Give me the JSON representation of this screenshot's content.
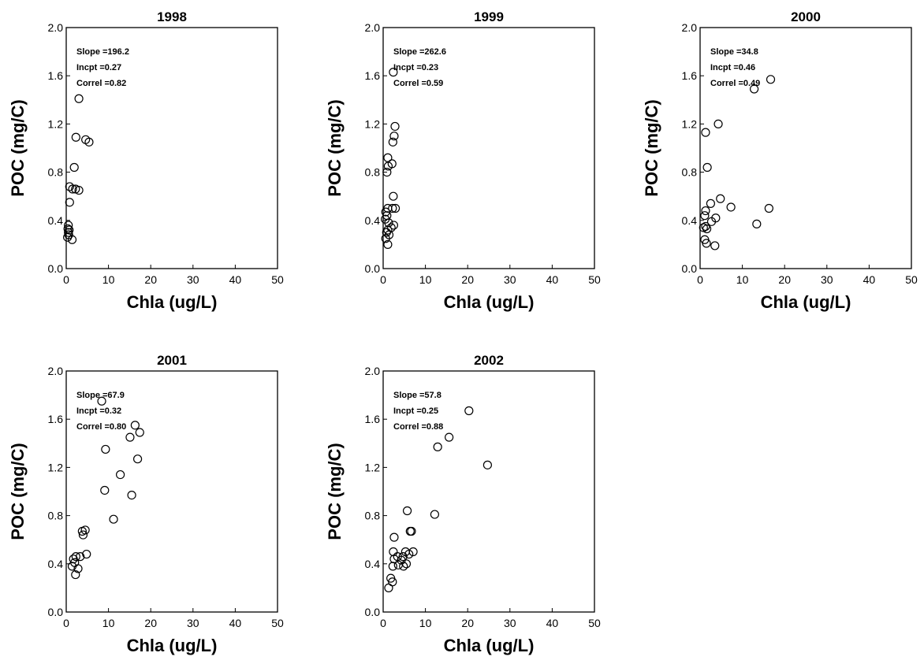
{
  "chart_data": [
    {
      "type": "scatter",
      "title": "1998",
      "xlabel": "Chla (ug/L)",
      "ylabel": "POC (mg/C)",
      "xlim": [
        0,
        50
      ],
      "ylim": [
        0,
        2.0
      ],
      "xticks": [
        "0",
        "10",
        "20",
        "30",
        "40",
        "50"
      ],
      "yticks": [
        "0.0",
        "0.4",
        "0.8",
        "1.2",
        "1.6",
        "2.0"
      ],
      "stats": [
        "Slope =196.2",
        "Incpt =0.27",
        "Correl =0.82"
      ],
      "points": [
        [
          3,
          1.41
        ],
        [
          2.3,
          1.09
        ],
        [
          4.6,
          1.07
        ],
        [
          5.4,
          1.05
        ],
        [
          1.9,
          0.84
        ],
        [
          0.8,
          0.68
        ],
        [
          1.5,
          0.66
        ],
        [
          2.2,
          0.66
        ],
        [
          3,
          0.65
        ],
        [
          0.8,
          0.55
        ],
        [
          0.5,
          0.36
        ],
        [
          0.4,
          0.33
        ],
        [
          0.7,
          0.32
        ],
        [
          0.5,
          0.3
        ],
        [
          0.6,
          0.28
        ],
        [
          0.3,
          0.26
        ],
        [
          1.4,
          0.24
        ]
      ]
    },
    {
      "type": "scatter",
      "title": "1999",
      "xlabel": "Chla (ug/L)",
      "ylabel": "POC (mg/C)",
      "xlim": [
        0,
        50
      ],
      "ylim": [
        0,
        2.0
      ],
      "xticks": [
        "0",
        "10",
        "20",
        "30",
        "40",
        "50"
      ],
      "yticks": [
        "0.0",
        "0.4",
        "0.8",
        "1.2",
        "1.6",
        "2.0"
      ],
      "stats": [
        "Slope =262.6",
        "Incpt =0.23",
        "Correl =0.59"
      ],
      "points": [
        [
          2.4,
          1.63
        ],
        [
          2.8,
          1.18
        ],
        [
          2.6,
          1.1
        ],
        [
          2.3,
          1.05
        ],
        [
          1.1,
          0.92
        ],
        [
          2.1,
          0.87
        ],
        [
          1.2,
          0.85
        ],
        [
          0.9,
          0.8
        ],
        [
          2.4,
          0.6
        ],
        [
          1.1,
          0.5
        ],
        [
          2.2,
          0.5
        ],
        [
          2.9,
          0.5
        ],
        [
          0.6,
          0.47
        ],
        [
          0.9,
          0.44
        ],
        [
          0.5,
          0.41
        ],
        [
          1.3,
          0.38
        ],
        [
          2.5,
          0.36
        ],
        [
          1.9,
          0.34
        ],
        [
          1.1,
          0.32
        ],
        [
          0.8,
          0.3
        ],
        [
          1.4,
          0.28
        ],
        [
          0.6,
          0.25
        ],
        [
          1.1,
          0.2
        ]
      ]
    },
    {
      "type": "scatter",
      "title": "2000",
      "xlabel": "Chla (ug/L)",
      "ylabel": "POC (mg/C)",
      "xlim": [
        0,
        50
      ],
      "ylim": [
        0,
        2.0
      ],
      "xticks": [
        "0",
        "10",
        "20",
        "30",
        "40",
        "50"
      ],
      "yticks": [
        "0.0",
        "0.4",
        "0.8",
        "1.2",
        "1.6",
        "2.0"
      ],
      "stats": [
        "Slope =34.8",
        "Incpt =0.46",
        "Correl =0.49"
      ],
      "points": [
        [
          16.7,
          1.57
        ],
        [
          12.8,
          1.49
        ],
        [
          4.3,
          1.2
        ],
        [
          1.3,
          1.13
        ],
        [
          1.7,
          0.84
        ],
        [
          4.8,
          0.58
        ],
        [
          2.5,
          0.54
        ],
        [
          7.3,
          0.51
        ],
        [
          16.3,
          0.5
        ],
        [
          1.3,
          0.48
        ],
        [
          1.1,
          0.44
        ],
        [
          3.7,
          0.42
        ],
        [
          2.7,
          0.39
        ],
        [
          13.4,
          0.37
        ],
        [
          1.3,
          0.35
        ],
        [
          0.8,
          0.34
        ],
        [
          1.6,
          0.33
        ],
        [
          1.1,
          0.24
        ],
        [
          1.5,
          0.21
        ],
        [
          3.5,
          0.19
        ]
      ]
    },
    {
      "type": "scatter",
      "title": "2001",
      "xlabel": "Chla (ug/L)",
      "ylabel": "POC (mg/C)",
      "xlim": [
        0,
        50
      ],
      "ylim": [
        0,
        2.0
      ],
      "xticks": [
        "0",
        "10",
        "20",
        "30",
        "40",
        "50"
      ],
      "yticks": [
        "0.0",
        "0.4",
        "0.8",
        "1.2",
        "1.6",
        "2.0"
      ],
      "stats": [
        "Slope =67.9",
        "Incpt =0.32",
        "Correl =0.80"
      ],
      "points": [
        [
          8.4,
          1.75
        ],
        [
          16.3,
          1.55
        ],
        [
          17.4,
          1.49
        ],
        [
          15.1,
          1.45
        ],
        [
          9.3,
          1.35
        ],
        [
          16.9,
          1.27
        ],
        [
          12.8,
          1.14
        ],
        [
          9.1,
          1.01
        ],
        [
          15.5,
          0.97
        ],
        [
          11.2,
          0.77
        ],
        [
          4.5,
          0.68
        ],
        [
          3.8,
          0.67
        ],
        [
          4,
          0.64
        ],
        [
          4.8,
          0.48
        ],
        [
          2.3,
          0.46
        ],
        [
          3.3,
          0.46
        ],
        [
          1.7,
          0.44
        ],
        [
          2,
          0.41
        ],
        [
          1.4,
          0.38
        ],
        [
          2.8,
          0.36
        ],
        [
          2.2,
          0.31
        ]
      ]
    },
    {
      "type": "scatter",
      "title": "2002",
      "xlabel": "Chla (ug/L)",
      "ylabel": "POC (mg/C)",
      "xlim": [
        0,
        50
      ],
      "ylim": [
        0,
        2.0
      ],
      "xticks": [
        "0",
        "10",
        "20",
        "30",
        "40",
        "50"
      ],
      "yticks": [
        "0.0",
        "0.4",
        "0.8",
        "1.2",
        "1.6",
        "2.0"
      ],
      "stats": [
        "Slope =57.8",
        "Incpt =0.25",
        "Correl =0.88"
      ],
      "points": [
        [
          20.3,
          1.67
        ],
        [
          15.6,
          1.45
        ],
        [
          12.9,
          1.37
        ],
        [
          24.7,
          1.22
        ],
        [
          5.7,
          0.84
        ],
        [
          12.2,
          0.81
        ],
        [
          6.7,
          0.67
        ],
        [
          6.4,
          0.67
        ],
        [
          2.6,
          0.62
        ],
        [
          2.4,
          0.5
        ],
        [
          5.3,
          0.5
        ],
        [
          7.1,
          0.5
        ],
        [
          6.1,
          0.48
        ],
        [
          4.7,
          0.46
        ],
        [
          3.4,
          0.46
        ],
        [
          2.6,
          0.44
        ],
        [
          4.3,
          0.43
        ],
        [
          5.5,
          0.4
        ],
        [
          3.6,
          0.39
        ],
        [
          2.3,
          0.38
        ],
        [
          4.8,
          0.38
        ],
        [
          1.8,
          0.28
        ],
        [
          2.2,
          0.25
        ],
        [
          1.3,
          0.2
        ]
      ]
    }
  ]
}
